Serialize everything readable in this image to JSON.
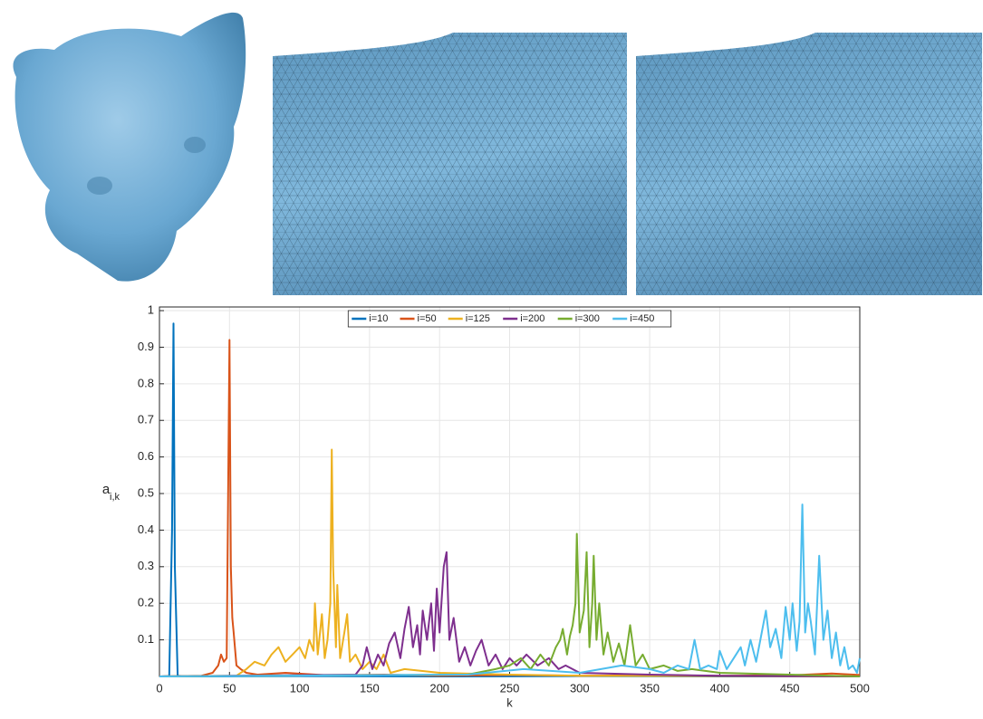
{
  "chart_data": {
    "type": "line",
    "xlabel": "k",
    "ylabel": "a",
    "ylabel_sub": "i,k",
    "xlim": [
      0,
      500
    ],
    "ylim": [
      0,
      1.01
    ],
    "xticks": [
      0,
      50,
      100,
      150,
      200,
      250,
      300,
      350,
      400,
      450,
      500
    ],
    "yticks": [
      0.1,
      0.2,
      0.3,
      0.4,
      0.5,
      0.6,
      0.7,
      0.8,
      0.9,
      1
    ],
    "grid": true,
    "legend": "top",
    "series": [
      {
        "name": "i=10",
        "color": "#0072bd",
        "x": [
          0,
          7,
          9,
          10,
          11,
          13,
          20,
          100,
          200,
          300,
          400,
          500
        ],
        "values": [
          0,
          0.001,
          0.4,
          0.965,
          0.3,
          0.002,
          0,
          0.001,
          0,
          0.001,
          0,
          0
        ]
      },
      {
        "name": "i=50",
        "color": "#d95319",
        "x": [
          0,
          30,
          38,
          42,
          44,
          46,
          48,
          50,
          51,
          52,
          53,
          55,
          58,
          62,
          70,
          90,
          120,
          160,
          200,
          250,
          300,
          350,
          400,
          450,
          480,
          500
        ],
        "values": [
          0,
          0.002,
          0.01,
          0.03,
          0.06,
          0.04,
          0.05,
          0.92,
          0.3,
          0.16,
          0.12,
          0.03,
          0.02,
          0.01,
          0.005,
          0.01,
          0.003,
          0.005,
          0.002,
          0.004,
          0.002,
          0.003,
          0.002,
          0.003,
          0.008,
          0.004
        ]
      },
      {
        "name": "i=125",
        "color": "#edb120",
        "x": [
          0,
          55,
          62,
          68,
          75,
          80,
          85,
          90,
          95,
          100,
          104,
          107,
          110,
          111,
          113,
          116,
          118,
          120,
          122,
          123,
          124,
          126,
          127,
          129,
          132,
          134,
          136,
          140,
          145,
          150,
          155,
          160,
          165,
          175,
          200,
          250,
          300,
          400,
          500
        ],
        "values": [
          0,
          0.002,
          0.02,
          0.04,
          0.03,
          0.06,
          0.08,
          0.04,
          0.06,
          0.08,
          0.05,
          0.1,
          0.07,
          0.2,
          0.06,
          0.17,
          0.05,
          0.1,
          0.2,
          0.62,
          0.3,
          0.08,
          0.25,
          0.05,
          0.12,
          0.17,
          0.04,
          0.06,
          0.02,
          0.04,
          0.02,
          0.06,
          0.01,
          0.02,
          0.01,
          0.005,
          0.002,
          0.001,
          0
        ]
      },
      {
        "name": "i=200",
        "color": "#7e2f8e",
        "x": [
          0,
          140,
          145,
          148,
          152,
          156,
          160,
          164,
          168,
          172,
          175,
          178,
          181,
          184,
          186,
          188,
          191,
          194,
          196,
          198,
          200,
          203,
          205,
          207,
          210,
          214,
          218,
          222,
          226,
          230,
          235,
          240,
          245,
          250,
          255,
          262,
          270,
          278,
          285,
          290,
          300,
          350,
          400,
          500
        ],
        "values": [
          0,
          0.005,
          0.03,
          0.08,
          0.02,
          0.06,
          0.03,
          0.09,
          0.12,
          0.05,
          0.13,
          0.19,
          0.08,
          0.14,
          0.06,
          0.18,
          0.1,
          0.2,
          0.07,
          0.24,
          0.12,
          0.3,
          0.34,
          0.1,
          0.16,
          0.04,
          0.08,
          0.03,
          0.07,
          0.1,
          0.03,
          0.06,
          0.02,
          0.05,
          0.03,
          0.06,
          0.03,
          0.05,
          0.02,
          0.03,
          0.01,
          0.005,
          0.002,
          0
        ]
      },
      {
        "name": "i=300",
        "color": "#77ac30",
        "x": [
          0,
          220,
          240,
          250,
          258,
          265,
          272,
          278,
          283,
          286,
          288,
          291,
          293,
          295,
          297,
          298,
          300,
          303,
          305,
          307,
          309,
          310,
          312,
          314,
          317,
          320,
          324,
          328,
          332,
          336,
          340,
          345,
          350,
          360,
          370,
          380,
          400,
          450,
          500
        ],
        "values": [
          0,
          0.005,
          0.02,
          0.03,
          0.05,
          0.02,
          0.06,
          0.03,
          0.08,
          0.1,
          0.13,
          0.06,
          0.11,
          0.14,
          0.2,
          0.39,
          0.12,
          0.18,
          0.34,
          0.08,
          0.2,
          0.33,
          0.1,
          0.2,
          0.06,
          0.12,
          0.04,
          0.09,
          0.03,
          0.14,
          0.03,
          0.06,
          0.02,
          0.03,
          0.015,
          0.02,
          0.01,
          0.005,
          0
        ]
      },
      {
        "name": "i=450",
        "color": "#4dbeee",
        "x": [
          0,
          220,
          260,
          300,
          330,
          350,
          360,
          370,
          378,
          382,
          386,
          392,
          398,
          400,
          405,
          410,
          415,
          418,
          422,
          426,
          430,
          433,
          436,
          440,
          444,
          447,
          450,
          452,
          455,
          457,
          459,
          461,
          463,
          465,
          468,
          471,
          474,
          477,
          480,
          483,
          486,
          489,
          492,
          495,
          498,
          500
        ],
        "values": [
          0,
          0.005,
          0.02,
          0.01,
          0.03,
          0.02,
          0.01,
          0.03,
          0.02,
          0.1,
          0.02,
          0.03,
          0.02,
          0.07,
          0.02,
          0.05,
          0.08,
          0.03,
          0.1,
          0.04,
          0.12,
          0.18,
          0.08,
          0.13,
          0.05,
          0.19,
          0.1,
          0.2,
          0.07,
          0.15,
          0.47,
          0.12,
          0.2,
          0.15,
          0.06,
          0.33,
          0.1,
          0.18,
          0.05,
          0.12,
          0.03,
          0.08,
          0.02,
          0.03,
          0.01,
          0.05
        ]
      }
    ]
  }
}
